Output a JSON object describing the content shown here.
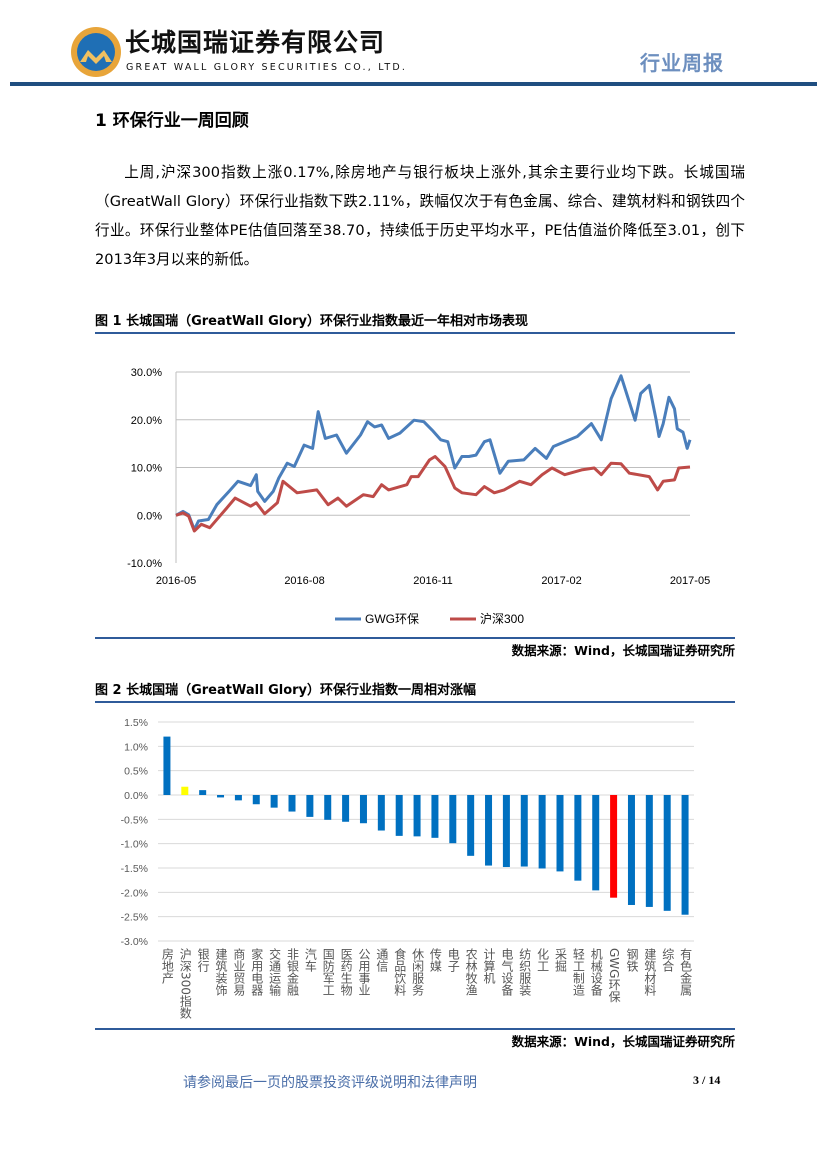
{
  "header": {
    "company_name": "长城国瑞证券有限公司",
    "company_name_en": "GREAT WALL GLORY SECURITIES CO., LTD.",
    "report_type": "行业周报",
    "rule_color": "#1f4e80"
  },
  "section": {
    "title": "1 环保行业一周回顾",
    "paragraph": "上周,沪深300指数上涨0.17%,除房地产与银行板块上涨外,其余主要行业均下跌。长城国瑞（GreatWall Glory）环保行业指数下跌2.11%，跌幅仅次于有色金属、综合、建筑材料和钢铁四个行业。环保行业整体PE估值回落至38.70，持续低于历史平均水平，PE估值溢价降低至3.01，创下2013年3月以来的新低。"
  },
  "figure1": {
    "title": "图 1 长城国瑞（GreatWall Glory）环保行业指数最近一年相对市场表现",
    "source": "数据来源：Wind，长城国瑞证券研究所"
  },
  "figure2": {
    "title": "图 2 长城国瑞（GreatWall Glory）环保行业指数一周相对涨幅",
    "source": "数据来源：Wind，长城国瑞证券研究所"
  },
  "footer": {
    "note": "请参阅最后一页的股票投资评级说明和法律声明",
    "page": "3 / 14"
  },
  "chart_data": [
    {
      "type": "line",
      "title": "",
      "xlim": [
        "2016-05-01",
        "2017-05-01"
      ],
      "x_ticks": [
        "2016-05",
        "2016-08",
        "2016-11",
        "2017-02",
        "2017-05"
      ],
      "ylim": [
        -10,
        30
      ],
      "y_ticks": [
        "-10.0%",
        "0.0%",
        "10.0%",
        "20.0%",
        "30.0%"
      ],
      "grid": true,
      "legend": "bottom",
      "series": [
        {
          "name": "GWG环保",
          "color": "#4a7ebb",
          "points": [
            [
              "2016-05-01",
              0
            ],
            [
              "2016-05-06",
              0.8
            ],
            [
              "2016-05-10",
              0.1
            ],
            [
              "2016-05-14",
              -3.0
            ],
            [
              "2016-05-17",
              -1.2
            ],
            [
              "2016-05-24",
              -0.9
            ],
            [
              "2016-05-30",
              2.2
            ],
            [
              "2016-06-08",
              5.1
            ],
            [
              "2016-06-14",
              7.1
            ],
            [
              "2016-06-23",
              6.2
            ],
            [
              "2016-06-27",
              8.5
            ],
            [
              "2016-06-28",
              5.0
            ],
            [
              "2016-07-03",
              2.9
            ],
            [
              "2016-07-09",
              5.0
            ],
            [
              "2016-07-13",
              7.8
            ],
            [
              "2016-07-19",
              10.9
            ],
            [
              "2016-07-24",
              10.2
            ],
            [
              "2016-07-31",
              14.7
            ],
            [
              "2016-08-06",
              14.0
            ],
            [
              "2016-08-10",
              21.7
            ],
            [
              "2016-08-15",
              16.1
            ],
            [
              "2016-08-23",
              16.8
            ],
            [
              "2016-08-30",
              13.0
            ],
            [
              "2016-09-09",
              16.8
            ],
            [
              "2016-09-14",
              19.6
            ],
            [
              "2016-09-19",
              18.5
            ],
            [
              "2016-09-24",
              18.9
            ],
            [
              "2016-09-29",
              16.1
            ],
            [
              "2016-10-07",
              17.2
            ],
            [
              "2016-10-17",
              19.9
            ],
            [
              "2016-10-24",
              19.6
            ],
            [
              "2016-10-30",
              17.8
            ],
            [
              "2016-11-05",
              15.8
            ],
            [
              "2016-11-10",
              15.4
            ],
            [
              "2016-11-15",
              9.9
            ],
            [
              "2016-11-20",
              12.3
            ],
            [
              "2016-11-25",
              12.3
            ],
            [
              "2016-11-30",
              12.6
            ],
            [
              "2016-12-06",
              15.4
            ],
            [
              "2016-12-10",
              15.8
            ],
            [
              "2016-12-17",
              8.8
            ],
            [
              "2016-12-23",
              11.3
            ],
            [
              "2017-01-03",
              11.6
            ],
            [
              "2017-01-11",
              14.0
            ],
            [
              "2017-01-19",
              11.9
            ],
            [
              "2017-01-24",
              14.4
            ],
            [
              "2017-02-01",
              15.4
            ],
            [
              "2017-02-10",
              16.5
            ],
            [
              "2017-02-20",
              19.2
            ],
            [
              "2017-02-27",
              15.8
            ],
            [
              "2017-03-06",
              24.4
            ],
            [
              "2017-03-13",
              29.2
            ],
            [
              "2017-03-17",
              25.5
            ],
            [
              "2017-03-23",
              19.9
            ],
            [
              "2017-03-27",
              25.5
            ],
            [
              "2017-04-02",
              27.2
            ],
            [
              "2017-04-07",
              19.9
            ],
            [
              "2017-04-09",
              16.5
            ],
            [
              "2017-04-12",
              19.2
            ],
            [
              "2017-04-16",
              24.7
            ],
            [
              "2017-04-20",
              22.3
            ],
            [
              "2017-04-22",
              18.1
            ],
            [
              "2017-04-26",
              17.4
            ],
            [
              "2017-04-29",
              14.0
            ],
            [
              "2017-05-01",
              15.8
            ]
          ]
        },
        {
          "name": "沪深300",
          "color": "#be4b48",
          "points": [
            [
              "2016-05-01",
              0
            ],
            [
              "2016-05-06",
              0.5
            ],
            [
              "2016-05-10",
              -0.2
            ],
            [
              "2016-05-14",
              -3.3
            ],
            [
              "2016-05-19",
              -1.9
            ],
            [
              "2016-05-25",
              -2.6
            ],
            [
              "2016-06-01",
              -0.2
            ],
            [
              "2016-06-06",
              1.5
            ],
            [
              "2016-06-12",
              3.6
            ],
            [
              "2016-06-23",
              1.9
            ],
            [
              "2016-06-27",
              2.6
            ],
            [
              "2016-07-03",
              0.3
            ],
            [
              "2016-07-12",
              2.6
            ],
            [
              "2016-07-16",
              7.1
            ],
            [
              "2016-07-26",
              4.7
            ],
            [
              "2016-08-09",
              5.3
            ],
            [
              "2016-08-17",
              2.2
            ],
            [
              "2016-08-24",
              3.6
            ],
            [
              "2016-08-30",
              1.9
            ],
            [
              "2016-09-11",
              4.3
            ],
            [
              "2016-09-18",
              3.9
            ],
            [
              "2016-09-24",
              6.4
            ],
            [
              "2016-09-29",
              5.3
            ],
            [
              "2016-10-12",
              6.4
            ],
            [
              "2016-10-15",
              8.1
            ],
            [
              "2016-10-20",
              8.1
            ],
            [
              "2016-10-28",
              11.6
            ],
            [
              "2016-11-01",
              12.3
            ],
            [
              "2016-11-08",
              10.2
            ],
            [
              "2016-11-15",
              5.7
            ],
            [
              "2016-11-20",
              4.7
            ],
            [
              "2016-11-30",
              4.3
            ],
            [
              "2016-12-06",
              6.0
            ],
            [
              "2016-12-13",
              4.7
            ],
            [
              "2016-12-20",
              5.3
            ],
            [
              "2016-12-31",
              7.1
            ],
            [
              "2017-01-08",
              6.4
            ],
            [
              "2017-01-16",
              8.5
            ],
            [
              "2017-01-23",
              9.9
            ],
            [
              "2017-02-01",
              8.5
            ],
            [
              "2017-02-13",
              9.5
            ],
            [
              "2017-02-22",
              9.9
            ],
            [
              "2017-02-27",
              8.5
            ],
            [
              "2017-03-06",
              10.9
            ],
            [
              "2017-03-13",
              10.8
            ],
            [
              "2017-03-19",
              8.8
            ],
            [
              "2017-04-02",
              8.1
            ],
            [
              "2017-04-08",
              5.3
            ],
            [
              "2017-04-12",
              7.1
            ],
            [
              "2017-04-20",
              7.4
            ],
            [
              "2017-04-23",
              9.9
            ],
            [
              "2017-05-01",
              10.1
            ]
          ]
        }
      ]
    },
    {
      "type": "bar",
      "title": "",
      "ylim": [
        -3.0,
        1.5
      ],
      "y_ticks": [
        "1.5%",
        "1.0%",
        "0.5%",
        "0.0%",
        "-0.5%",
        "-1.0%",
        "-1.5%",
        "-2.0%",
        "-2.5%",
        "-3.0%"
      ],
      "grid": true,
      "unit": "%",
      "categories": [
        "房地产",
        "沪深300指数",
        "银行",
        "建筑装饰",
        "商业贸易",
        "家用电器",
        "交通运输",
        "非银金融",
        "汽车",
        "国防军工",
        "医药生物",
        "公用事业",
        "通信",
        "食品饮料",
        "休闲服务",
        "传媒",
        "电子",
        "农林牧渔",
        "计算机",
        "电气设备",
        "纺织服装",
        "化工",
        "采掘",
        "轻工制造",
        "机械设备",
        "GWG环保",
        "钢铁",
        "建筑材料",
        "综合",
        "有色金属"
      ],
      "values": [
        1.2,
        0.17,
        0.1,
        -0.05,
        -0.11,
        -0.19,
        -0.26,
        -0.34,
        -0.45,
        -0.51,
        -0.55,
        -0.58,
        -0.73,
        -0.84,
        -0.85,
        -0.88,
        -0.99,
        -1.25,
        -1.45,
        -1.48,
        -1.47,
        -1.51,
        -1.57,
        -1.76,
        -1.96,
        -2.11,
        -2.26,
        -2.3,
        -2.38,
        -2.46
      ],
      "colors": {
        "default": "#0070c0",
        "沪深300指数": "#ffff00",
        "GWG环保": "#ff0000"
      }
    }
  ]
}
